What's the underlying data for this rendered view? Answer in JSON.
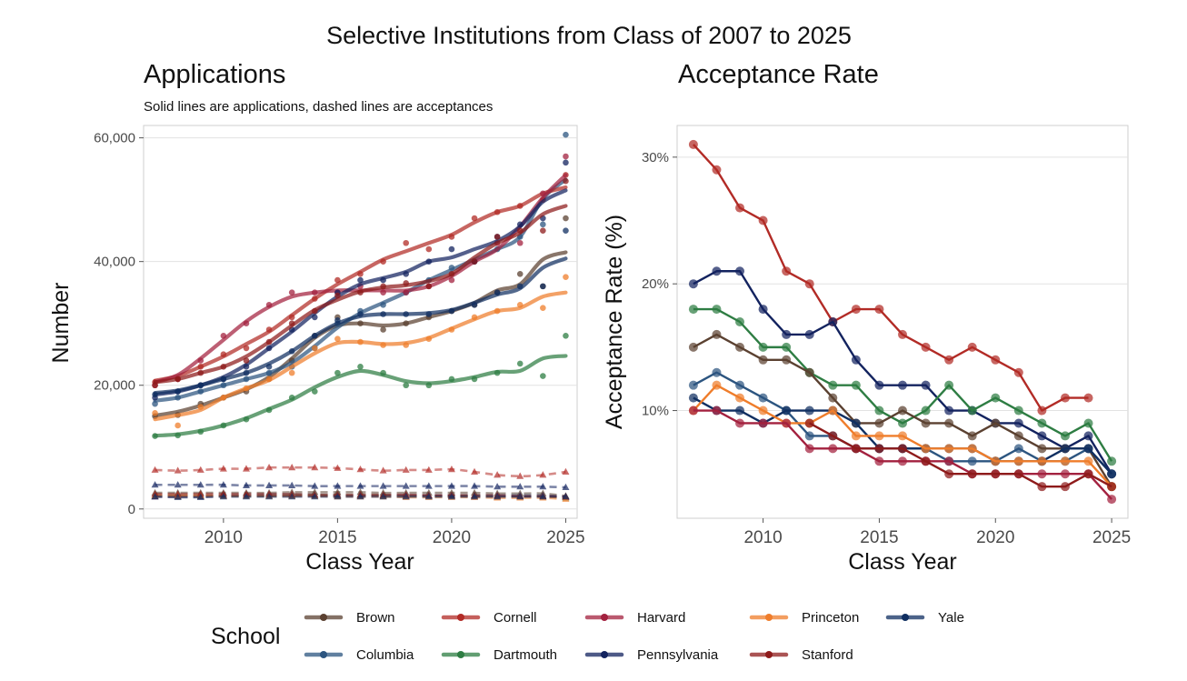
{
  "page_title": "Selective Institutions from Class of 2007 to 2025",
  "colors": {
    "Brown": "#5b4131",
    "Columbia": "#2c5580",
    "Cornell": "#b22b26",
    "Dartmouth": "#2e7d43",
    "Harvard": "#a3213f",
    "Pennsylvania": "#13235f",
    "Princeton": "#ef7d2b",
    "Stanford": "#8e1b1b",
    "Yale": "#102f61"
  },
  "legend": {
    "title": "School",
    "items": [
      "Brown",
      "Cornell",
      "Harvard",
      "Princeton",
      "Yale",
      "Columbia",
      "Dartmouth",
      "Pennsylvania",
      "Stanford"
    ]
  },
  "chart_data": [
    {
      "type": "line",
      "title": "Applications",
      "subtitle": "Solid lines are applications, dashed lines are acceptances",
      "xlabel": "Class Year",
      "ylabel": "Number",
      "xlim": [
        2006.5,
        2025.5
      ],
      "ylim": [
        -1500,
        62000
      ],
      "xticks": [
        2010,
        2015,
        2020,
        2025
      ],
      "xtick_labels": [
        "2010",
        "2015",
        "2020",
        "2025"
      ],
      "yticks": [
        0,
        20000,
        40000,
        60000
      ],
      "ytick_labels": [
        "0",
        "20,000",
        "40,000",
        "60,000"
      ],
      "x": [
        2007,
        2008,
        2009,
        2010,
        2011,
        2012,
        2013,
        2014,
        2015,
        2016,
        2017,
        2018,
        2019,
        2020,
        2021,
        2022,
        2023,
        2024,
        2025
      ],
      "series": [
        {
          "name": "Brown",
          "applications": [
            15000,
            15200,
            17000,
            18000,
            19000,
            21000,
            24000,
            28000,
            31000,
            30000,
            29000,
            30000,
            31000,
            32000,
            33000,
            35000,
            38000,
            36000,
            47000
          ],
          "acceptances": [
            2600,
            2600,
            2600,
            2600,
            2600,
            2600,
            2700,
            2700,
            2700,
            2700,
            2600,
            2600,
            2600,
            2600,
            2600,
            2500,
            2500,
            2500,
            2100
          ]
        },
        {
          "name": "Columbia",
          "applications": [
            17000,
            18000,
            19000,
            20000,
            21000,
            22000,
            23000,
            26000,
            30000,
            32000,
            33000,
            35000,
            37000,
            39000,
            40000,
            42000,
            44000,
            46000,
            60500
          ],
          "acceptances": [
            2000,
            2000,
            2000,
            2200,
            2200,
            2300,
            2300,
            2300,
            2200,
            2200,
            2200,
            2200,
            2200,
            2200,
            2200,
            2200,
            2200,
            2200,
            2000
          ]
        },
        {
          "name": "Cornell",
          "applications": [
            20500,
            21000,
            23000,
            25000,
            26000,
            29000,
            31000,
            34000,
            37000,
            38000,
            40000,
            43000,
            42000,
            44000,
            47000,
            48000,
            49000,
            50000,
            54000
          ],
          "acceptances": [
            6300,
            6200,
            6300,
            6500,
            6500,
            6700,
            6700,
            6700,
            6600,
            6400,
            6200,
            6300,
            6300,
            6400,
            6000,
            5500,
            5300,
            5500,
            6000
          ]
        },
        {
          "name": "Dartmouth",
          "applications": [
            11800,
            11900,
            12500,
            13500,
            14500,
            16000,
            18000,
            19000,
            22000,
            23000,
            22000,
            20000,
            20000,
            21000,
            21000,
            22000,
            23500,
            21500,
            28000
          ],
          "acceptances": [
            2100,
            2100,
            2100,
            2100,
            2100,
            2100,
            2200,
            2200,
            2200,
            2200,
            2200,
            2100,
            2100,
            2100,
            2100,
            2000,
            2000,
            2000,
            1800
          ]
        },
        {
          "name": "Harvard",
          "applications": [
            20000,
            21000,
            24000,
            28000,
            30000,
            33000,
            35000,
            35000,
            35000,
            36000,
            35000,
            35000,
            36000,
            37000,
            40000,
            43000,
            43000,
            51000,
            57000
          ],
          "acceptances": [
            2000,
            2000,
            2000,
            2100,
            2100,
            2100,
            2100,
            2100,
            2100,
            2100,
            2100,
            2100,
            2100,
            2100,
            2000,
            2000,
            2000,
            2000,
            1900
          ]
        },
        {
          "name": "Pennsylvania",
          "applications": [
            18000,
            19000,
            20000,
            21000,
            23000,
            26000,
            29000,
            31000,
            35000,
            37000,
            37000,
            38000,
            40000,
            42000,
            40000,
            44000,
            46000,
            47000,
            56000
          ],
          "acceptances": [
            3900,
            3900,
            3900,
            3900,
            3800,
            3800,
            3800,
            3700,
            3700,
            3700,
            3700,
            3700,
            3700,
            3700,
            3700,
            3600,
            3600,
            3600,
            3500
          ]
        },
        {
          "name": "Princeton",
          "applications": [
            15500,
            13500,
            16500,
            18000,
            19500,
            21000,
            22000,
            26000,
            27500,
            27000,
            26500,
            26500,
            27500,
            29000,
            31000,
            32000,
            33000,
            32500,
            37500
          ],
          "acceptances": [
            2200,
            2200,
            2200,
            2100,
            2100,
            2100,
            2100,
            2100,
            2000,
            2000,
            2000,
            1900,
            1900,
            1900,
            1900,
            1800,
            1800,
            1800,
            1600
          ]
        },
        {
          "name": "Stanford",
          "applications": [
            20000,
            21000,
            22000,
            23000,
            24000,
            27000,
            30000,
            32000,
            34500,
            35000,
            36000,
            36500,
            36000,
            38000,
            40000,
            44000,
            45000,
            45000,
            53000
          ],
          "acceptances": [
            2400,
            2400,
            2400,
            2400,
            2400,
            2400,
            2400,
            2300,
            2300,
            2300,
            2300,
            2300,
            2200,
            2200,
            2200,
            2200,
            2100,
            2100,
            2000
          ]
        },
        {
          "name": "Yale",
          "applications": [
            18500,
            19000,
            20000,
            21000,
            22000,
            23000,
            25500,
            28000,
            30500,
            31500,
            31500,
            31500,
            31500,
            32000,
            33000,
            35000,
            36000,
            36000,
            45000
          ],
          "acceptances": [
            2000,
            1900,
            1900,
            2000,
            2000,
            2000,
            2000,
            2000,
            2000,
            2000,
            2000,
            2000,
            2000,
            2000,
            2000,
            2000,
            2000,
            2000,
            2000
          ]
        }
      ]
    },
    {
      "type": "line",
      "title": "Acceptance Rate",
      "xlabel": "Class Year",
      "ylabel": "Acceptance Rate (%)",
      "xlim": [
        2006.3,
        2025.7
      ],
      "ylim": [
        1.5,
        32.5
      ],
      "xticks": [
        2010,
        2015,
        2020,
        2025
      ],
      "xtick_labels": [
        "2010",
        "2015",
        "2020",
        "2025"
      ],
      "yticks": [
        10,
        20,
        30
      ],
      "ytick_labels": [
        "10%",
        "20%",
        "30%"
      ],
      "x": [
        2007,
        2008,
        2009,
        2010,
        2011,
        2012,
        2013,
        2014,
        2015,
        2016,
        2017,
        2018,
        2019,
        2020,
        2021,
        2022,
        2023,
        2024,
        2025
      ],
      "series": [
        {
          "name": "Cornell",
          "values": [
            31,
            29,
            26,
            25,
            21,
            20,
            17,
            18,
            18,
            16,
            15,
            14,
            15,
            14,
            13,
            10,
            11,
            11,
            null
          ]
        },
        {
          "name": "Pennsylvania",
          "values": [
            20,
            21,
            21,
            18,
            16,
            16,
            17,
            14,
            12,
            12,
            12,
            10,
            10,
            9,
            9,
            8,
            7,
            8,
            5
          ]
        },
        {
          "name": "Dartmouth",
          "values": [
            18,
            18,
            17,
            15,
            15,
            13,
            12,
            12,
            10,
            9,
            10,
            12,
            10,
            11,
            10,
            9,
            8,
            9,
            6
          ]
        },
        {
          "name": "Brown",
          "values": [
            15,
            16,
            15,
            14,
            14,
            13,
            11,
            9,
            9,
            10,
            9,
            9,
            8,
            9,
            8,
            7,
            7,
            7,
            4
          ]
        },
        {
          "name": "Columbia",
          "values": [
            12,
            13,
            12,
            11,
            10,
            8,
            8,
            7,
            7,
            7,
            7,
            6,
            6,
            6,
            7,
            6,
            6,
            7,
            5
          ]
        },
        {
          "name": "Yale",
          "values": [
            11,
            10,
            10,
            9,
            10,
            10,
            10,
            9,
            7,
            7,
            7,
            7,
            7,
            6,
            6,
            6,
            7,
            7,
            5
          ]
        },
        {
          "name": "Princeton",
          "values": [
            10,
            12,
            11,
            10,
            9,
            9,
            10,
            8,
            8,
            8,
            7,
            7,
            7,
            6,
            6,
            6,
            6,
            6,
            4
          ]
        },
        {
          "name": "Harvard",
          "values": [
            10,
            10,
            9,
            9,
            9,
            7,
            7,
            7,
            6,
            6,
            6,
            6,
            5,
            5,
            5,
            5,
            5,
            5,
            3
          ]
        },
        {
          "name": "Stanford",
          "values": [
            null,
            null,
            null,
            null,
            null,
            9,
            8,
            7,
            7,
            7,
            6,
            5,
            5,
            5,
            5,
            4,
            4,
            5,
            4
          ]
        }
      ]
    }
  ]
}
